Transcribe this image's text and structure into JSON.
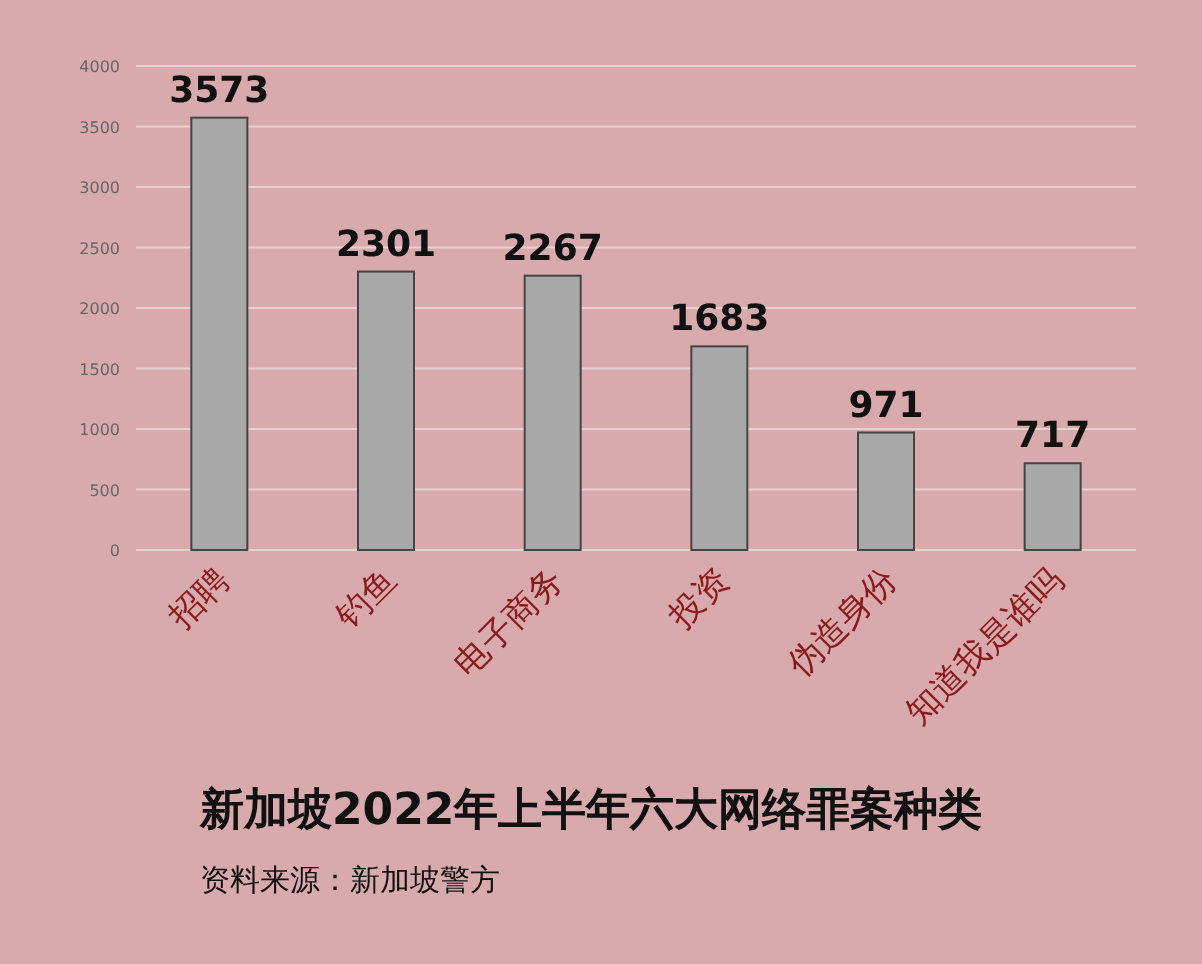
{
  "chart_data": {
    "type": "bar",
    "title": "新加坡2022年上半年六大网络罪案种类",
    "categories": [
      "招聘",
      "钓鱼",
      "电子商务",
      "投资",
      "伪造身份",
      "知道我是谁吗"
    ],
    "values": [
      3573,
      2301,
      2267,
      1683,
      971,
      717
    ],
    "color": "#a8a8a8",
    "ylim": [
      0,
      4000
    ],
    "yticks": [
      0,
      500,
      1000,
      1500,
      2000,
      2500,
      3000,
      3500,
      4000
    ],
    "grid": "y",
    "data_labels": true,
    "annotations": [
      "资料来源：新加坡警方"
    ]
  }
}
